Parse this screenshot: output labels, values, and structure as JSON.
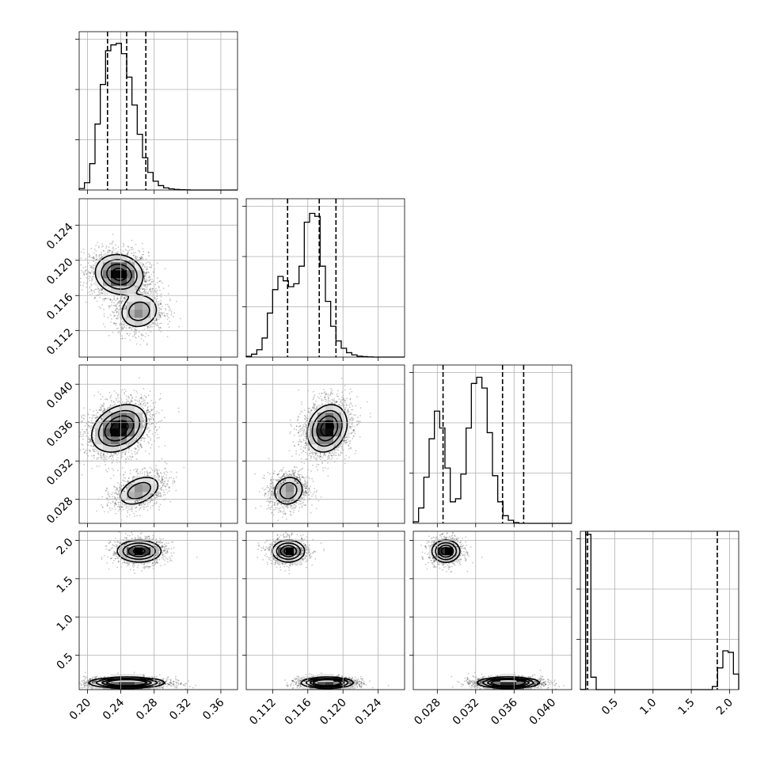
{
  "chart_data": {
    "type": "corner",
    "parameters": 4,
    "grid": true,
    "ranges": [
      [
        0.19,
        0.38
      ],
      [
        0.109,
        0.127
      ],
      [
        0.0255,
        0.042
      ],
      [
        0.05,
        2.12
      ]
    ],
    "ticks": [
      {
        "values": [
          0.2,
          0.24,
          0.28,
          0.32,
          0.36
        ],
        "labels": [
          "0.20",
          "0.24",
          "0.28",
          "0.32",
          "0.36"
        ]
      },
      {
        "values": [
          0.112,
          0.116,
          0.12,
          0.124
        ],
        "labels": [
          "0.112",
          "0.116",
          "0.120",
          "0.124"
        ]
      },
      {
        "values": [
          0.028,
          0.032,
          0.036,
          0.04
        ],
        "labels": [
          "0.028",
          "0.032",
          "0.036",
          "0.040"
        ]
      },
      {
        "values": [
          0.5,
          1.0,
          1.5,
          2.0
        ],
        "labels": [
          "0.5",
          "1.0",
          "1.5",
          "2.0"
        ]
      }
    ],
    "histograms": [
      {
        "param": 0,
        "edges": [
          0.19,
          0.38
        ],
        "counts": [
          0.01,
          0.05,
          0.18,
          0.45,
          0.72,
          0.95,
          0.99,
          1.0,
          0.93,
          0.77,
          0.58,
          0.38,
          0.22,
          0.12,
          0.06,
          0.03,
          0.015,
          0.008,
          0.004,
          0.002,
          0.001,
          0,
          0,
          0,
          0,
          0,
          0,
          0,
          0,
          0
        ],
        "ymax": 1.08,
        "quantiles": [
          0.224,
          0.247,
          0.27
        ]
      },
      {
        "param": 1,
        "edges": [
          0.109,
          0.127
        ],
        "counts": [
          0.005,
          0.02,
          0.05,
          0.13,
          0.3,
          0.46,
          0.55,
          0.52,
          0.48,
          0.5,
          0.62,
          0.92,
          0.98,
          0.96,
          0.62,
          0.38,
          0.21,
          0.11,
          0.06,
          0.03,
          0.015,
          0.006,
          0.003,
          0.001,
          0,
          0,
          0,
          0,
          0,
          0
        ],
        "ymax": 1.08,
        "quantiles": [
          0.1137,
          0.1173,
          0.1192
        ]
      },
      {
        "param": 2,
        "edges": [
          0.0255,
          0.042
        ],
        "counts": [
          0.01,
          0.1,
          0.3,
          0.55,
          0.73,
          0.62,
          0.36,
          0.14,
          0.16,
          0.32,
          0.62,
          0.91,
          0.95,
          0.88,
          0.59,
          0.31,
          0.14,
          0.05,
          0.02,
          0.005,
          0,
          0,
          0,
          0,
          0,
          0,
          0,
          0,
          0,
          0
        ],
        "ymax": 1.03,
        "quantiles": [
          0.0286,
          0.0348,
          0.037
        ]
      },
      {
        "param": 3,
        "edges": [
          0.05,
          2.12
        ],
        "counts": [
          0.001,
          1.0,
          0.08,
          0,
          0,
          0,
          0,
          0,
          0,
          0,
          0,
          0,
          0,
          0,
          0,
          0,
          0,
          0,
          0,
          0,
          0,
          0,
          0,
          0,
          0,
          0.02,
          0.14,
          0.25,
          0.24,
          0.1
        ],
        "ymax": 1.02,
        "quantiles": [
          0.12,
          0.145,
          1.84
        ]
      }
    ],
    "joint": [
      {
        "x": 0,
        "y": 1,
        "modes": [
          {
            "cx": 0.238,
            "cy": 0.1184,
            "sx": 0.014,
            "sy": 0.0011,
            "rho": -0.1,
            "w": 0.65
          },
          {
            "cx": 0.262,
            "cy": 0.1142,
            "sx": 0.012,
            "sy": 0.001,
            "rho": 0.1,
            "w": 0.35
          }
        ]
      },
      {
        "x": 0,
        "y": 2,
        "modes": [
          {
            "cx": 0.238,
            "cy": 0.0354,
            "sx": 0.016,
            "sy": 0.0012,
            "rho": 0.3,
            "w": 0.65
          },
          {
            "cx": 0.262,
            "cy": 0.0289,
            "sx": 0.013,
            "sy": 0.0008,
            "rho": 0.4,
            "w": 0.35
          }
        ]
      },
      {
        "x": 0,
        "y": 3,
        "modes": [
          {
            "cx": 0.247,
            "cy": 0.14,
            "sx": 0.02,
            "sy": 0.03,
            "rho": 0,
            "w": 0.65
          },
          {
            "cx": 0.262,
            "cy": 1.86,
            "sx": 0.013,
            "sy": 0.07,
            "rho": 0,
            "w": 0.35
          }
        ]
      },
      {
        "x": 1,
        "y": 2,
        "modes": [
          {
            "cx": 0.1182,
            "cy": 0.0354,
            "sx": 0.0011,
            "sy": 0.0012,
            "rho": 0.2,
            "w": 0.65
          },
          {
            "cx": 0.1138,
            "cy": 0.0289,
            "sx": 0.0009,
            "sy": 0.0008,
            "rho": 0.1,
            "w": 0.35
          }
        ]
      },
      {
        "x": 1,
        "y": 3,
        "modes": [
          {
            "cx": 0.1182,
            "cy": 0.14,
            "sx": 0.0013,
            "sy": 0.03,
            "rho": 0,
            "w": 0.65
          },
          {
            "cx": 0.1138,
            "cy": 1.86,
            "sx": 0.0009,
            "sy": 0.07,
            "rho": 0,
            "w": 0.35
          }
        ]
      },
      {
        "x": 2,
        "y": 3,
        "modes": [
          {
            "cx": 0.0354,
            "cy": 0.14,
            "sx": 0.0014,
            "sy": 0.03,
            "rho": 0,
            "w": 0.65
          },
          {
            "cx": 0.0289,
            "cy": 1.86,
            "sx": 0.0007,
            "sy": 0.07,
            "rho": 0,
            "w": 0.35
          }
        ]
      }
    ]
  }
}
